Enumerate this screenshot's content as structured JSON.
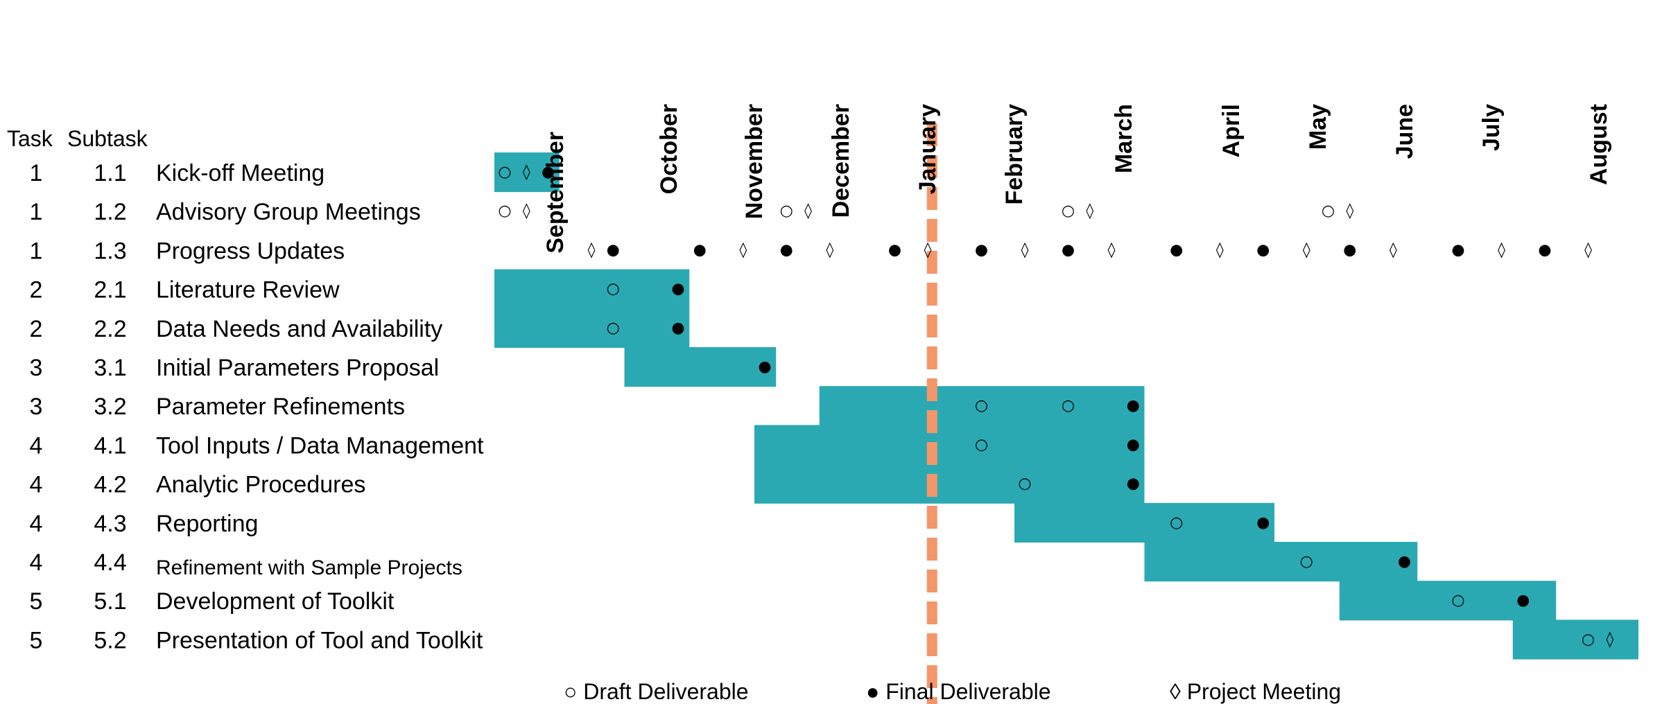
{
  "chart_data": {
    "type": "gantt",
    "months": [
      "September",
      "October",
      "November",
      "December",
      "January",
      "February",
      "March",
      "April",
      "May",
      "June",
      "July",
      "August"
    ],
    "column_headers": {
      "task": "Task",
      "subtask": "Subtask"
    },
    "colors": {
      "bar": "#2BA9B2",
      "today_line": "#F4956A",
      "text": "#000000"
    },
    "symbols": {
      "draft": "○",
      "final": "●",
      "meeting": "◊"
    },
    "legend": [
      {
        "key": "draft",
        "label": "○ Draft Deliverable"
      },
      {
        "key": "final",
        "label": "● Final Deliverable"
      },
      {
        "key": "meeting",
        "label": "◊ Project Meeting"
      }
    ],
    "today_marker_month": 5.05,
    "tasks": [
      {
        "task": "1",
        "subtask": "1.1",
        "name": "Kick-off Meeting",
        "bar": [
          0.0,
          0.75
        ],
        "markers": [
          [
            "draft",
            0.12
          ],
          [
            "meeting",
            0.37
          ],
          [
            "final",
            0.62
          ]
        ]
      },
      {
        "task": "1",
        "subtask": "1.2",
        "name": "Advisory Group Meetings",
        "bar": null,
        "markers": [
          [
            "draft",
            0.12
          ],
          [
            "meeting",
            0.37
          ],
          [
            "draft",
            3.37
          ],
          [
            "meeting",
            3.62
          ],
          [
            "draft",
            6.62
          ],
          [
            "meeting",
            6.87
          ],
          [
            "draft",
            9.62
          ],
          [
            "meeting",
            9.87
          ]
        ]
      },
      {
        "task": "1",
        "subtask": "1.3",
        "name": "Progress Updates",
        "bar": null,
        "markers": [
          [
            "meeting",
            1.12
          ],
          [
            "final",
            1.37
          ],
          [
            "final",
            2.37
          ],
          [
            "meeting",
            2.87
          ],
          [
            "final",
            3.37
          ],
          [
            "meeting",
            3.87
          ],
          [
            "final",
            4.62
          ],
          [
            "meeting",
            5.0
          ],
          [
            "final",
            5.62
          ],
          [
            "meeting",
            6.12
          ],
          [
            "final",
            6.62
          ],
          [
            "meeting",
            7.12
          ],
          [
            "final",
            7.87
          ],
          [
            "meeting",
            8.37
          ],
          [
            "final",
            8.87
          ],
          [
            "meeting",
            9.37
          ],
          [
            "final",
            9.87
          ],
          [
            "meeting",
            10.37
          ],
          [
            "final",
            11.12
          ],
          [
            "meeting",
            11.62
          ],
          [
            "final",
            12.12
          ],
          [
            "meeting",
            12.62
          ]
        ]
      },
      {
        "task": "2",
        "subtask": "2.1",
        "name": "Literature Review",
        "bar": [
          0.0,
          2.25
        ],
        "markers": [
          [
            "draft",
            1.37
          ],
          [
            "final",
            2.12
          ]
        ]
      },
      {
        "task": "2",
        "subtask": "2.2",
        "name": "Data Needs and Availability",
        "bar": [
          0.0,
          2.25
        ],
        "markers": [
          [
            "draft",
            1.37
          ],
          [
            "final",
            2.12
          ]
        ]
      },
      {
        "task": "3",
        "subtask": "3.1",
        "name": "Initial Parameters Proposal",
        "bar": [
          1.5,
          3.25
        ],
        "markers": [
          [
            "final",
            3.12
          ]
        ]
      },
      {
        "task": "3",
        "subtask": "3.2",
        "name": "Parameter Refinements",
        "bar": [
          3.75,
          7.5
        ],
        "markers": [
          [
            "draft",
            5.62
          ],
          [
            "draft",
            6.62
          ],
          [
            "final",
            7.37
          ]
        ]
      },
      {
        "task": "4",
        "subtask": "4.1",
        "name": "Tool Inputs / Data Management",
        "bar": [
          3.0,
          7.5
        ],
        "markers": [
          [
            "draft",
            5.62
          ],
          [
            "final",
            7.37
          ]
        ]
      },
      {
        "task": "4",
        "subtask": "4.2",
        "name": "Analytic Procedures",
        "bar": [
          3.0,
          7.5
        ],
        "markers": [
          [
            "draft",
            6.12
          ],
          [
            "final",
            7.37
          ]
        ]
      },
      {
        "task": "4",
        "subtask": "4.3",
        "name": "Reporting",
        "bar": [
          6.0,
          9.0
        ],
        "markers": [
          [
            "draft",
            7.87
          ],
          [
            "final",
            8.87
          ]
        ]
      },
      {
        "task": "4",
        "subtask": "4.4",
        "name": "Refinement with Sample Projects",
        "bar": [
          7.5,
          10.65
        ],
        "small": true,
        "markers": [
          [
            "draft",
            9.37
          ],
          [
            "final",
            10.5
          ]
        ]
      },
      {
        "task": "5",
        "subtask": "5.1",
        "name": "Development of Toolkit",
        "bar": [
          9.75,
          12.25
        ],
        "markers": [
          [
            "draft",
            11.12
          ],
          [
            "final",
            11.87
          ]
        ]
      },
      {
        "task": "5",
        "subtask": "5.2",
        "name": "Presentation of Tool and Toolkit",
        "bar": [
          11.75,
          13.2
        ],
        "markers": [
          [
            "draft",
            12.62
          ],
          [
            "meeting",
            12.87
          ]
        ]
      }
    ]
  }
}
